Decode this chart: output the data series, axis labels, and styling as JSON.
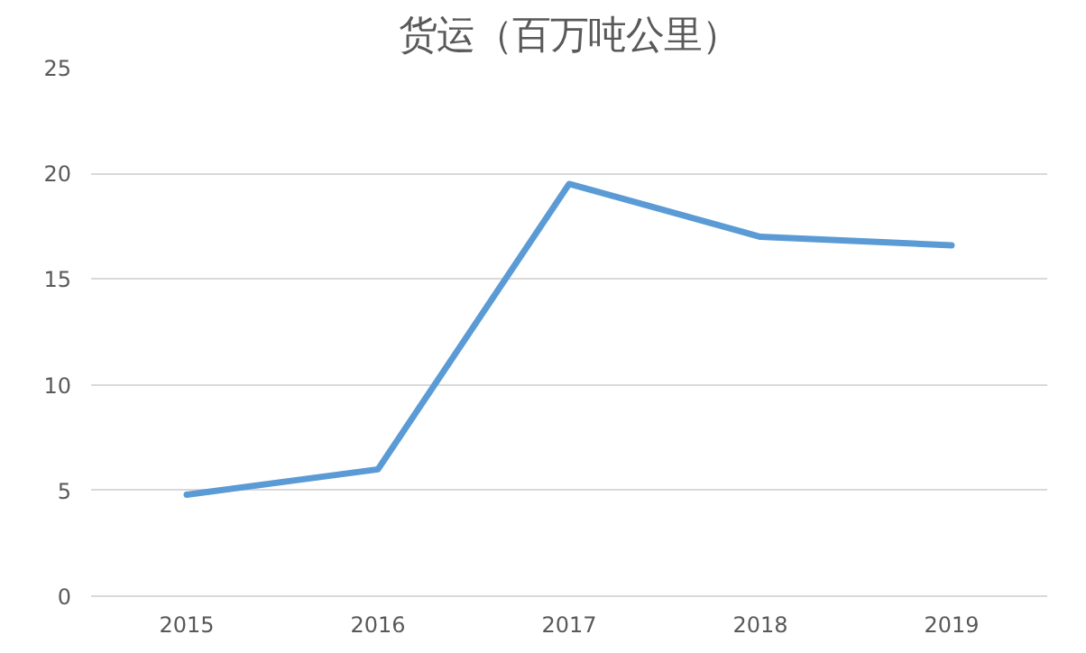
{
  "chart_data": {
    "type": "line",
    "title": "货运（百万吨公里）",
    "categories": [
      "2015",
      "2016",
      "2017",
      "2018",
      "2019"
    ],
    "series": [
      {
        "color": "#5b9bd5",
        "values": [
          4.8,
          6.0,
          19.5,
          17.0,
          16.6
        ]
      }
    ],
    "ylim": [
      0,
      25
    ],
    "yticks": [
      0,
      5,
      10,
      15,
      20,
      25
    ],
    "grid": "y",
    "marker": "none",
    "line_style": "solid"
  }
}
